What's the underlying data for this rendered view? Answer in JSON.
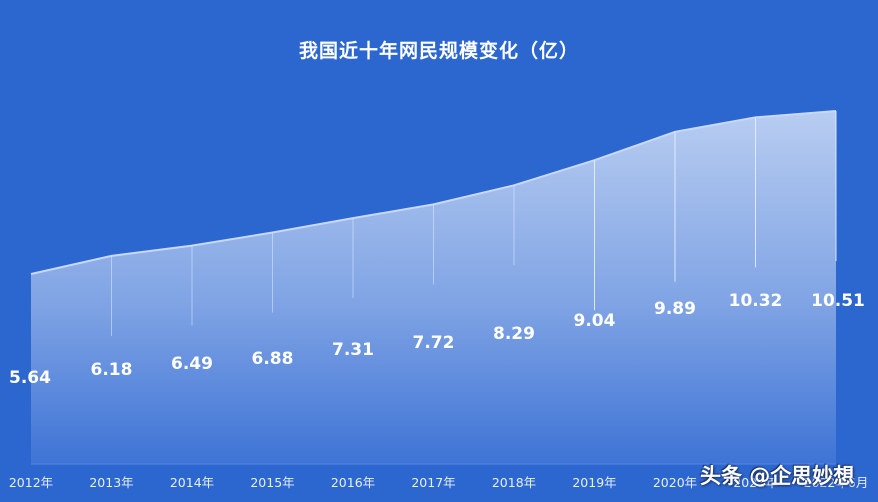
{
  "chart_data": {
    "type": "area",
    "title": "我国近十年网民规模变化（亿）",
    "categories": [
      "2012年",
      "2013年",
      "2014年",
      "2015年",
      "2016年",
      "2017年",
      "2018年",
      "2019年",
      "2020年",
      "2021年",
      "2022年6月"
    ],
    "values": [
      5.64,
      6.18,
      6.49,
      6.88,
      7.31,
      7.72,
      8.29,
      9.04,
      9.89,
      10.32,
      10.51
    ],
    "xlabel": "",
    "ylabel": "",
    "unit": "亿",
    "grid": false,
    "legend": "none",
    "data_labels": true
  },
  "colors": {
    "background": "#2c66cf",
    "area_top": "#b4c9ef",
    "area_bottom": "#3f75d6",
    "text": "#ffffff"
  },
  "watermark": "头条 @企思妙想"
}
